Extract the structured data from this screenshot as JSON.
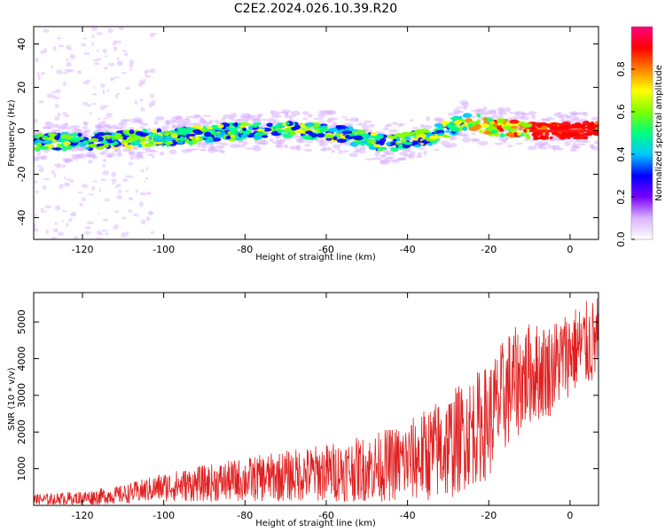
{
  "title": "C2E2.2024.026.10.39.R20",
  "colors": {
    "axes": "#000000",
    "snr_line": "#e02020",
    "colormap": [
      "#ffffff",
      "#d9b3ff",
      "#7a00ff",
      "#0000ff",
      "#00c8ff",
      "#00ff80",
      "#80ff00",
      "#ffff00",
      "#ff8000",
      "#ff0000",
      "#ff0080"
    ]
  },
  "chart_data": [
    {
      "type": "heatmap",
      "xlabel": "Height of straight line (km)",
      "ylabel": "Frequency (Hz)",
      "xlim": [
        -132,
        7
      ],
      "ylim": [
        -50,
        48
      ],
      "xticks": [
        -120,
        -100,
        -80,
        -60,
        -40,
        -20,
        0
      ],
      "yticks": [
        -40,
        -20,
        0,
        20,
        40
      ],
      "colorbar": {
        "label": "Normalized spectral amplitude",
        "range": [
          0,
          1
        ],
        "ticks": [
          "0.0",
          "0.2",
          "0.4",
          "0.6",
          "0.8"
        ]
      },
      "ridge": {
        "description_points": [
          {
            "x": -132,
            "y": -5
          },
          {
            "x": -120,
            "y": -5
          },
          {
            "x": -100,
            "y": -3
          },
          {
            "x": -80,
            "y": 0
          },
          {
            "x": -60,
            "y": 0
          },
          {
            "x": -45,
            "y": -6
          },
          {
            "x": -35,
            "y": -3
          },
          {
            "x": -25,
            "y": 5
          },
          {
            "x": -20,
            "y": 2
          },
          {
            "x": -10,
            "y": 0
          },
          {
            "x": 7,
            "y": 0
          }
        ]
      }
    },
    {
      "type": "line",
      "xlabel": "Height of straight line (km)",
      "ylabel": "SNR (10 * v/v)",
      "xlim": [
        -132,
        7
      ],
      "ylim": [
        0,
        5800
      ],
      "xticks": [
        -120,
        -100,
        -80,
        -60,
        -40,
        -20,
        0
      ],
      "yticks": [
        1000,
        2000,
        3000,
        4000,
        5000
      ],
      "series": [
        {
          "values_envelope": [
            {
              "x": -132,
              "mean": 150,
              "spread": 150
            },
            {
              "x": -120,
              "mean": 200,
              "spread": 200
            },
            {
              "x": -110,
              "mean": 300,
              "spread": 250
            },
            {
              "x": -100,
              "mean": 500,
              "spread": 400
            },
            {
              "x": -90,
              "mean": 600,
              "spread": 500
            },
            {
              "x": -80,
              "mean": 700,
              "spread": 600
            },
            {
              "x": -70,
              "mean": 800,
              "spread": 700
            },
            {
              "x": -60,
              "mean": 900,
              "spread": 800
            },
            {
              "x": -50,
              "mean": 1000,
              "spread": 900
            },
            {
              "x": -40,
              "mean": 1200,
              "spread": 1100
            },
            {
              "x": -30,
              "mean": 1600,
              "spread": 1500
            },
            {
              "x": -25,
              "mean": 2000,
              "spread": 1500
            },
            {
              "x": -20,
              "mean": 2300,
              "spread": 1600
            },
            {
              "x": -15,
              "mean": 3200,
              "spread": 1600
            },
            {
              "x": -10,
              "mean": 3600,
              "spread": 1400
            },
            {
              "x": -5,
              "mean": 3700,
              "spread": 1300
            },
            {
              "x": 0,
              "mean": 4200,
              "spread": 1200
            },
            {
              "x": 7,
              "mean": 4500,
              "spread": 1200
            }
          ]
        }
      ]
    }
  ]
}
